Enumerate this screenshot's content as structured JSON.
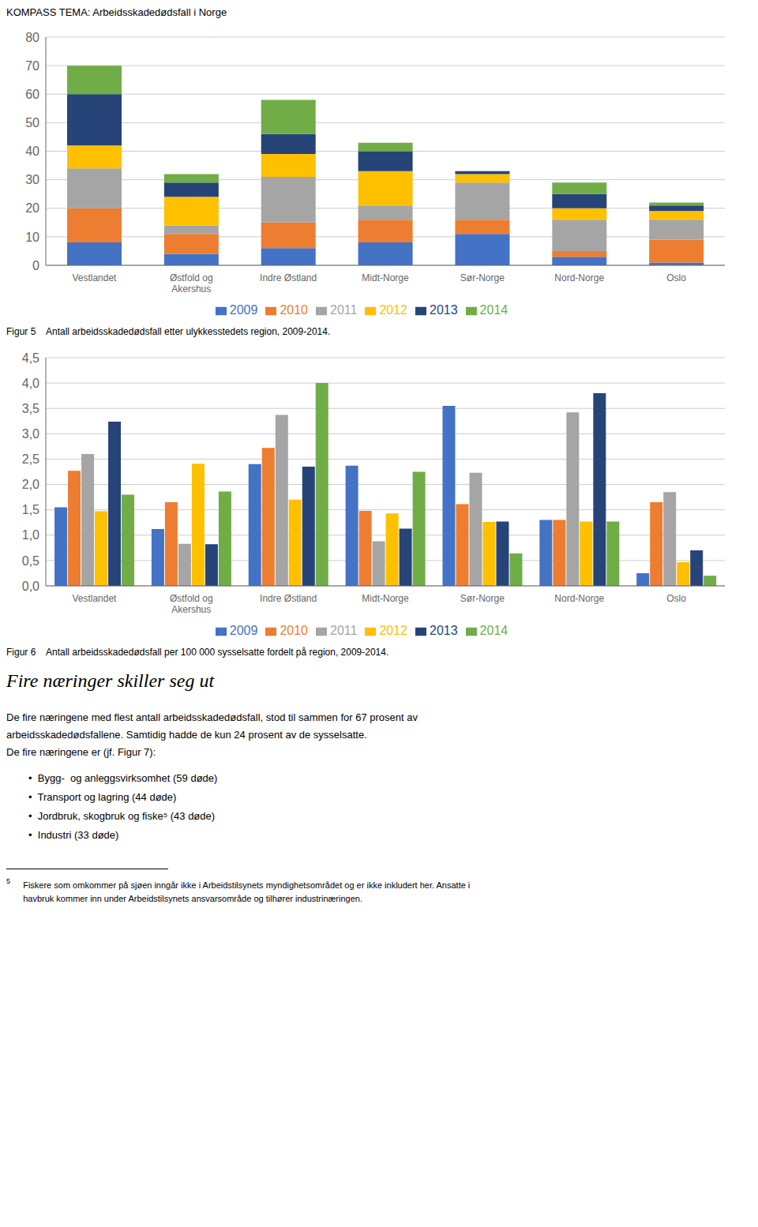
{
  "title": "KOMPASS TEMA: Arbeidsskadedødsfall i Norge",
  "chart_data": [
    {
      "type": "bar",
      "title": "Figur 5    Antall arbeidsskadedødsfall etter ulykkesstedets region, 2009-2014.",
      "stacked": true,
      "grid": true,
      "legend": "bottom",
      "categories": [
        "Vestlandet",
        "Østfold og\nAkershus",
        "Indre Østland",
        "Midt-Norge",
        "Sør-Norge",
        "Nord-Norge",
        "Oslo"
      ],
      "ylim": [
        0,
        80
      ],
      "yticks": [
        0,
        10,
        20,
        30,
        40,
        50,
        60,
        70,
        80
      ],
      "series": [
        {
          "name": "2009",
          "color": "#4472C4",
          "values": [
            8,
            4,
            6,
            8,
            11,
            3,
            1
          ]
        },
        {
          "name": "2010",
          "color": "#ED7D31",
          "values": [
            12,
            7,
            9,
            8,
            5,
            2,
            8
          ]
        },
        {
          "name": "2011",
          "color": "#A5A5A5",
          "values": [
            14,
            3,
            16,
            5,
            13,
            11,
            7
          ]
        },
        {
          "name": "2012",
          "color": "#FFC000",
          "values": [
            8,
            10,
            8,
            12,
            3,
            4,
            3
          ]
        },
        {
          "name": "2013",
          "color": "#264478",
          "values": [
            18,
            5,
            7,
            7,
            1,
            5,
            2
          ]
        },
        {
          "name": "2014",
          "color": "#70AD47",
          "values": [
            10,
            3,
            12,
            3,
            0,
            4,
            1
          ]
        }
      ]
    },
    {
      "type": "bar",
      "title": "Figur 6    Antall arbeidsskadedødsfall per 100 000 sysselsatte fordelt på region, 2009-2014.",
      "stacked": false,
      "grid": true,
      "legend": "bottom",
      "categories": [
        "Vestlandet",
        "Østfold og\nAkershus",
        "Indre Østland",
        "Midt-Norge",
        "Sør-Norge",
        "Nord-Norge",
        "Oslo"
      ],
      "ylim": [
        0,
        4.5
      ],
      "yticks": [
        {
          "value": 0.0,
          "label": "0,0"
        },
        {
          "value": 0.5,
          "label": "0,5"
        },
        {
          "value": 1.0,
          "label": "1,0"
        },
        {
          "value": 1.5,
          "label": "1,5"
        },
        {
          "value": 2.0,
          "label": "2,0"
        },
        {
          "value": 2.5,
          "label": "2,5"
        },
        {
          "value": 3.0,
          "label": "3,0"
        },
        {
          "value": 3.5,
          "label": "3,5"
        },
        {
          "value": 4.0,
          "label": "4,0"
        },
        {
          "value": 4.5,
          "label": "4,5"
        }
      ],
      "series": [
        {
          "name": "2009",
          "color": "#4472C4",
          "values": [
            1.55,
            1.12,
            2.4,
            2.37,
            3.55,
            1.3,
            0.25
          ]
        },
        {
          "name": "2010",
          "color": "#ED7D31",
          "values": [
            2.27,
            1.65,
            2.72,
            1.48,
            1.61,
            1.3,
            1.65
          ]
        },
        {
          "name": "2011",
          "color": "#A5A5A5",
          "values": [
            2.6,
            0.83,
            3.37,
            0.88,
            2.23,
            3.42,
            1.85
          ]
        },
        {
          "name": "2012",
          "color": "#FFC000",
          "values": [
            1.47,
            2.41,
            1.7,
            1.43,
            1.26,
            1.27,
            0.47
          ]
        },
        {
          "name": "2013",
          "color": "#264478",
          "values": [
            3.24,
            0.82,
            2.35,
            1.13,
            1.27,
            3.8,
            0.7
          ]
        },
        {
          "name": "2014",
          "color": "#70AD47",
          "values": [
            1.8,
            1.86,
            4.0,
            2.25,
            0.64,
            1.27,
            0.2
          ]
        }
      ]
    }
  ],
  "annotations": [
    "Fire næringer skiller seg ut",
    "De fire næringene med flest antall arbeidsskadedødsfall, stod til sammen for 67 prosent av",
    "arbeidsskadedødsfallene. Samtidig hadde de kun 24 prosent av de sysselsatte.",
    "De fire næringene er (jf. Figur 7):",
    "•  Bygg-  og anleggsvirksomhet (59 døde)",
    "•  Transport og lagring (44 døde)",
    "•  Jordbruk, skogbruk og fiske⁵ (43 døde)",
    "•  Industri (33 døde)",
    "5",
    "   Fiskere som omkommer på sjøen inngår ikke i Arbeidstilsynets myndighetsområdet og er ikke inkludert her. Ansatte i",
    "   havbruk kommer inn under Arbeidstilsynets ansvarsområde og tilhører industrinæringen."
  ]
}
